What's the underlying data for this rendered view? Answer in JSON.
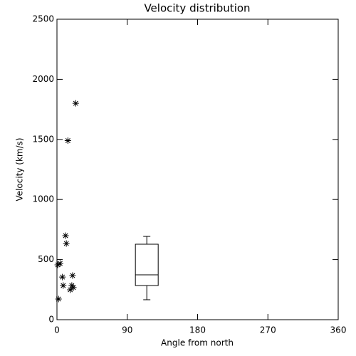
{
  "chart_data": {
    "type": "scatter",
    "title": "Velocity distribution",
    "x_label": "Angle from north",
    "y_label": "Velocity (km/s)",
    "x": [
      2,
      1,
      4,
      7,
      8,
      11,
      12,
      14,
      17,
      19,
      20,
      21,
      24
    ],
    "y": [
      172,
      456,
      468,
      355,
      284,
      699,
      634,
      1490,
      249,
      284,
      367,
      267,
      1800
    ],
    "color": "#000000",
    "box": {
      "x": 115,
      "whislo": 166,
      "q1": 284,
      "median": 373,
      "q3": 628,
      "whishi": 693
    },
    "xlim": [
      0,
      360
    ],
    "ylim": [
      0,
      2500
    ],
    "xticks": [
      0,
      90,
      180,
      270,
      360
    ],
    "yticks": [
      0,
      500,
      1000,
      1500,
      2000,
      2500
    ]
  }
}
